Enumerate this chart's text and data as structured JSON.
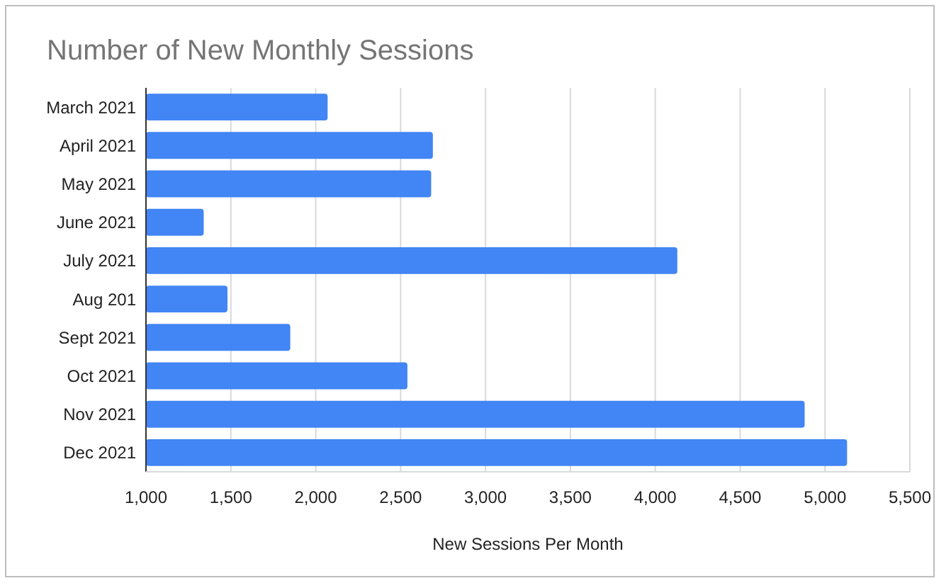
{
  "chart_data": {
    "type": "bar",
    "orientation": "horizontal",
    "title": "Number of New Monthly Sessions",
    "xlabel": "New Sessions Per Month",
    "categories": [
      "March 2021",
      "April 2021",
      "May 2021",
      "June 2021",
      "July 2021",
      "Aug 201",
      "Sept 2021",
      "Oct 2021",
      "Nov 2021",
      "Dec 2021"
    ],
    "values": [
      2070,
      2690,
      2680,
      1340,
      4130,
      1480,
      1850,
      2540,
      4880,
      5130
    ],
    "color": "#4285f4",
    "xlim": [
      1000,
      5500
    ],
    "xticks": [
      {
        "value": 1000,
        "label": "1,000"
      },
      {
        "value": 1500,
        "label": "1,500"
      },
      {
        "value": 2000,
        "label": "2,000"
      },
      {
        "value": 2500,
        "label": "2,500"
      },
      {
        "value": 3000,
        "label": "3,000"
      },
      {
        "value": 3500,
        "label": "3,500"
      },
      {
        "value": 4000,
        "label": "4,000"
      },
      {
        "value": 4500,
        "label": "4,500"
      },
      {
        "value": 5000,
        "label": "5,000"
      },
      {
        "value": 5500,
        "label": "5,500"
      }
    ],
    "grid": "x"
  }
}
